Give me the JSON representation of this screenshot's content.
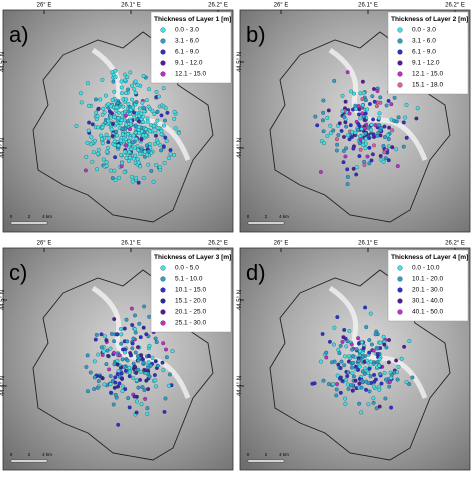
{
  "coordinates": {
    "longitude": [
      "26° E",
      "26.1° E",
      "26.2° E"
    ],
    "latitude": [
      "44.5° N",
      "44.4° N"
    ]
  },
  "scale_bar": [
    "0",
    "2",
    "4 km"
  ],
  "panels": [
    {
      "label": "a)",
      "legend": {
        "title": "Thickness of Layer 1 [m]",
        "items": [
          {
            "label": "0.0 - 3.0",
            "color": "#3fe3e3"
          },
          {
            "label": "3.1 - 6.0",
            "color": "#2f9fc8"
          },
          {
            "label": "6.1 - 9.0",
            "color": "#3030c8"
          },
          {
            "label": "9.1 - 12.0",
            "color": "#5a1a96"
          },
          {
            "label": "12.1 - 15.0",
            "color": "#c42cc4"
          }
        ]
      }
    },
    {
      "label": "b)",
      "legend": {
        "title": "Thickness of Layer 2 [m]",
        "items": [
          {
            "label": "0.0 - 3.0",
            "color": "#3fe3e3"
          },
          {
            "label": "3.1 - 6.0",
            "color": "#2f9fc8"
          },
          {
            "label": "6.1 - 9.0",
            "color": "#3030c8"
          },
          {
            "label": "9.1 - 12.0",
            "color": "#5a1a96"
          },
          {
            "label": "12.1 - 15.0",
            "color": "#c42cc4"
          },
          {
            "label": "15.1 - 18.0",
            "color": "#e0609c"
          }
        ]
      }
    },
    {
      "label": "c)",
      "legend": {
        "title": "Thickness of Layer 3 [m]",
        "items": [
          {
            "label": "0.0 - 5.0",
            "color": "#3fe3e3"
          },
          {
            "label": "5.1 - 10.0",
            "color": "#2f9fc8"
          },
          {
            "label": "10.1 - 15.0",
            "color": "#3030c8"
          },
          {
            "label": "15.1 - 20.0",
            "color": "#2a2a90"
          },
          {
            "label": "20.1 - 25.0",
            "color": "#5a1a96"
          },
          {
            "label": "25.1 - 30.0",
            "color": "#c42cc4"
          }
        ]
      }
    },
    {
      "label": "d)",
      "legend": {
        "title": "Thickness of Layer 4 [m]",
        "items": [
          {
            "label": "0.0 - 10.0",
            "color": "#3fe3e3"
          },
          {
            "label": "10.1 - 20.0",
            "color": "#2f9fc8"
          },
          {
            "label": "20.1 - 30.0",
            "color": "#3030c8"
          },
          {
            "label": "30.1 - 40.0",
            "color": "#5a1a96"
          },
          {
            "label": "40.1 - 50.0",
            "color": "#c42cc4"
          }
        ]
      }
    }
  ]
}
